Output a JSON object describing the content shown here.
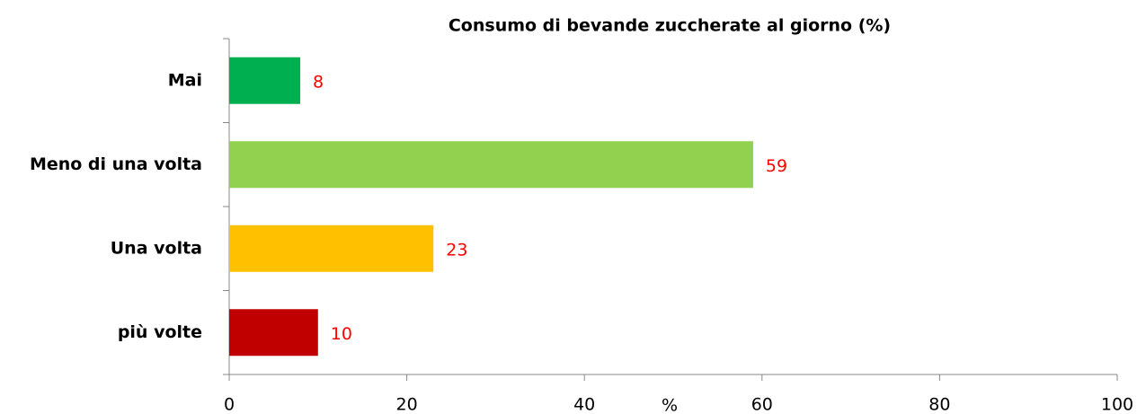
{
  "chart_data": {
    "type": "barh",
    "title": "Consumo di bevande zuccherate al giorno (%)",
    "categories": [
      "Mai",
      "Meno di una volta",
      "Una volta",
      "più volte"
    ],
    "values": [
      8,
      59,
      23,
      10
    ],
    "colors": [
      "#00b050",
      "#92d050",
      "#ffc000",
      "#c00000"
    ],
    "x_label": "%",
    "xlim": [
      0,
      100
    ],
    "xticks": [
      0,
      20,
      40,
      60,
      80,
      100
    ],
    "grid": false,
    "value_label_color": "#ff0000"
  }
}
